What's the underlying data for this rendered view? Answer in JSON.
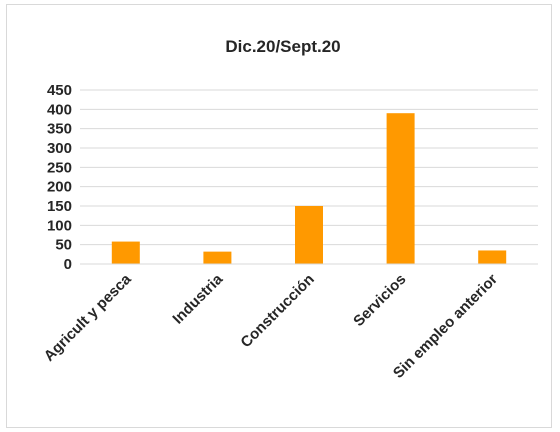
{
  "chart_data": {
    "type": "bar",
    "title": "Dic.20/Sept.20",
    "categories": [
      "Agricult y pesca",
      "Industria",
      "Construcción",
      "Servicios",
      "Sin empleo anterior"
    ],
    "values": [
      58,
      32,
      150,
      390,
      35
    ],
    "ylim": [
      0,
      450
    ],
    "yticks": [
      0,
      50,
      100,
      150,
      200,
      250,
      300,
      350,
      400,
      450
    ],
    "grid": true,
    "legend": "none",
    "bar_color": "#ff9900",
    "grid_color": "#d9d9d9"
  }
}
